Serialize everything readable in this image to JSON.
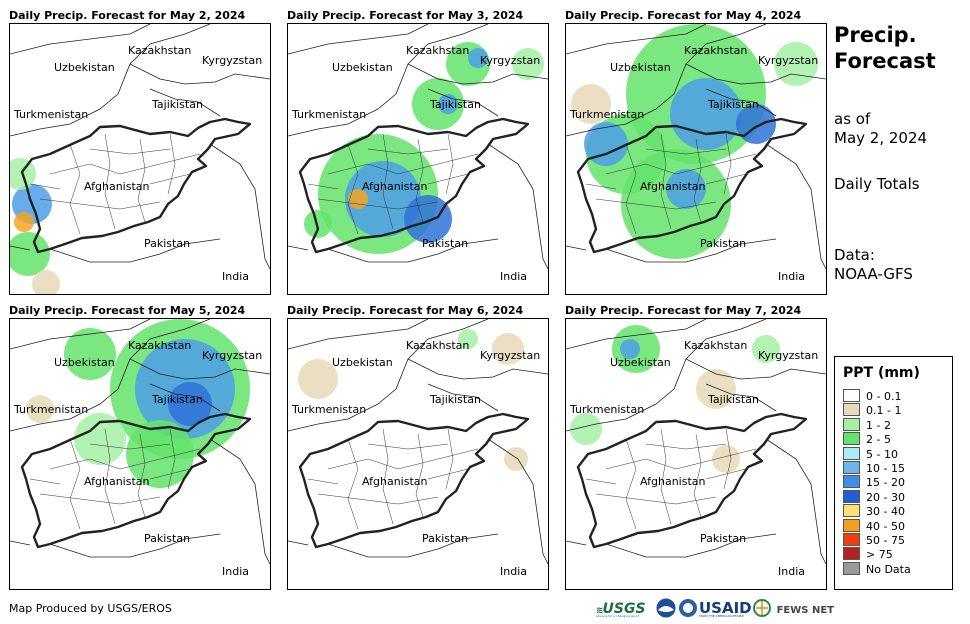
{
  "panels": [
    {
      "title": "Daily Precip. Forecast for May 2, 2024",
      "rain": [
        {
          "cx": 22,
          "cy": 180,
          "r": 20,
          "c": "#4f9ee8"
        },
        {
          "cx": 14,
          "cy": 198,
          "r": 10,
          "c": "#f5a623"
        },
        {
          "cx": 18,
          "cy": 230,
          "r": 22,
          "c": "#63e36b"
        },
        {
          "cx": 10,
          "cy": 150,
          "r": 16,
          "c": "#a4f0a4"
        },
        {
          "cx": 36,
          "cy": 260,
          "r": 14,
          "c": "#e8d9b8"
        }
      ]
    },
    {
      "title": "Daily Precip. Forecast for May 3, 2024",
      "rain": [
        {
          "cx": 180,
          "cy": 40,
          "r": 22,
          "c": "#63e36b"
        },
        {
          "cx": 190,
          "cy": 34,
          "r": 10,
          "c": "#4f9ee8"
        },
        {
          "cx": 150,
          "cy": 80,
          "r": 26,
          "c": "#63e36b"
        },
        {
          "cx": 160,
          "cy": 80,
          "r": 10,
          "c": "#4f9ee8"
        },
        {
          "cx": 90,
          "cy": 170,
          "r": 60,
          "c": "#63e36b"
        },
        {
          "cx": 95,
          "cy": 175,
          "r": 38,
          "c": "#4f9ee8"
        },
        {
          "cx": 70,
          "cy": 175,
          "r": 10,
          "c": "#f5a623"
        },
        {
          "cx": 140,
          "cy": 195,
          "r": 24,
          "c": "#2f72d8"
        },
        {
          "cx": 30,
          "cy": 200,
          "r": 14,
          "c": "#63e36b"
        },
        {
          "cx": 240,
          "cy": 40,
          "r": 16,
          "c": "#a4f0a4"
        }
      ]
    },
    {
      "title": "Daily Precip. Forecast for May 4, 2024",
      "rain": [
        {
          "cx": 130,
          "cy": 70,
          "r": 70,
          "c": "#63e36b"
        },
        {
          "cx": 140,
          "cy": 90,
          "r": 36,
          "c": "#4f9ee8"
        },
        {
          "cx": 60,
          "cy": 130,
          "r": 40,
          "c": "#63e36b"
        },
        {
          "cx": 40,
          "cy": 120,
          "r": 22,
          "c": "#4f9ee8"
        },
        {
          "cx": 110,
          "cy": 180,
          "r": 55,
          "c": "#63e36b"
        },
        {
          "cx": 120,
          "cy": 165,
          "r": 20,
          "c": "#4f9ee8"
        },
        {
          "cx": 190,
          "cy": 100,
          "r": 20,
          "c": "#2f72d8"
        },
        {
          "cx": 230,
          "cy": 40,
          "r": 22,
          "c": "#a4f0a4"
        },
        {
          "cx": 25,
          "cy": 80,
          "r": 20,
          "c": "#e8d9b8"
        }
      ]
    },
    {
      "title": "Daily Precip. Forecast for May 5, 2024",
      "rain": [
        {
          "cx": 170,
          "cy": 70,
          "r": 70,
          "c": "#63e36b"
        },
        {
          "cx": 175,
          "cy": 70,
          "r": 50,
          "c": "#4f9ee8"
        },
        {
          "cx": 180,
          "cy": 85,
          "r": 22,
          "c": "#2f72d8"
        },
        {
          "cx": 80,
          "cy": 35,
          "r": 26,
          "c": "#63e36b"
        },
        {
          "cx": 150,
          "cy": 135,
          "r": 34,
          "c": "#63e36b"
        },
        {
          "cx": 90,
          "cy": 120,
          "r": 26,
          "c": "#a4f0a4"
        },
        {
          "cx": 30,
          "cy": 90,
          "r": 14,
          "c": "#e8d9b8"
        }
      ]
    },
    {
      "title": "Daily Precip. Forecast for May 6, 2024",
      "rain": [
        {
          "cx": 30,
          "cy": 60,
          "r": 20,
          "c": "#e8d9b8"
        },
        {
          "cx": 220,
          "cy": 30,
          "r": 16,
          "c": "#e8d9b8"
        },
        {
          "cx": 180,
          "cy": 20,
          "r": 10,
          "c": "#a4f0a4"
        },
        {
          "cx": 228,
          "cy": 140,
          "r": 12,
          "c": "#e8d9b8"
        }
      ]
    },
    {
      "title": "Daily Precip. Forecast for May 7, 2024",
      "rain": [
        {
          "cx": 70,
          "cy": 30,
          "r": 24,
          "c": "#63e36b"
        },
        {
          "cx": 64,
          "cy": 30,
          "r": 10,
          "c": "#4f9ee8"
        },
        {
          "cx": 150,
          "cy": 70,
          "r": 20,
          "c": "#e8d9b8"
        },
        {
          "cx": 200,
          "cy": 30,
          "r": 14,
          "c": "#a4f0a4"
        },
        {
          "cx": 20,
          "cy": 110,
          "r": 16,
          "c": "#a4f0a4"
        },
        {
          "cx": 160,
          "cy": 140,
          "r": 14,
          "c": "#e8d9b8"
        }
      ]
    }
  ],
  "countries": [
    "Kazakhstan",
    "Uzbekistan",
    "Kyrgyzstan",
    "Tajikistan",
    "Turkmenistan",
    "Afghanistan",
    "Pakistan",
    "India"
  ],
  "sidebar": {
    "title_line1": "Precip.",
    "title_line2": "Forecast",
    "asof_line1": "as of",
    "asof_line2": "May 2, 2024",
    "daily": "Daily Totals",
    "data_line1": "Data:",
    "data_line2": "NOAA-GFS"
  },
  "legend": {
    "title": "PPT (mm)",
    "items": [
      {
        "label": "0 - 0.1",
        "color": "#ffffff"
      },
      {
        "label": "0.1 - 1",
        "color": "#e8d9b8"
      },
      {
        "label": "1 - 2",
        "color": "#a4f0a4"
      },
      {
        "label": "2 - 5",
        "color": "#63e36b"
      },
      {
        "label": "5 - 10",
        "color": "#a8eef2"
      },
      {
        "label": "10 - 15",
        "color": "#6fb3ee"
      },
      {
        "label": "15 - 20",
        "color": "#3d8fe3"
      },
      {
        "label": "20 - 30",
        "color": "#1f5fd6"
      },
      {
        "label": "30 - 40",
        "color": "#fce07a"
      },
      {
        "label": "40 - 50",
        "color": "#f5a01a"
      },
      {
        "label": "50 - 75",
        "color": "#ef4010"
      },
      {
        "label": "> 75",
        "color": "#b52020"
      },
      {
        "label": "No Data",
        "color": "#9a9a9a"
      }
    ]
  },
  "footer": {
    "credit": "Map Produced by USGS/EROS",
    "usgs": "USGS",
    "usgs_tag": "science for a changing world",
    "usaid": "USAID",
    "usaid_tag": "FROM THE AMERICAN PEOPLE",
    "fewsnet": "FEWS NET"
  }
}
